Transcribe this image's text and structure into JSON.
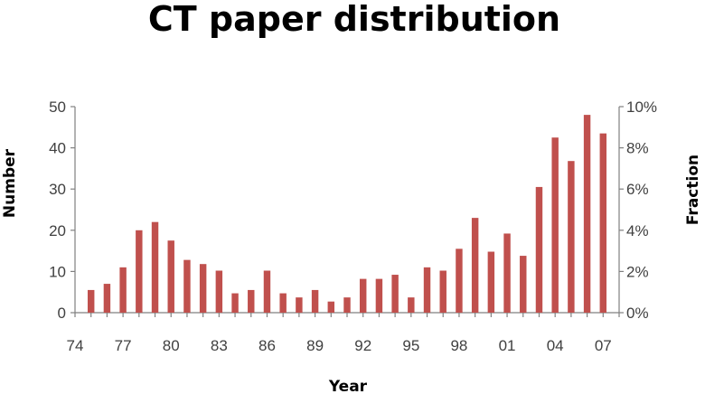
{
  "chart_data": {
    "type": "bar",
    "title": "CT paper distribution",
    "xlabel": "Year",
    "ylabel": "Number",
    "y2label": "Fraction",
    "ylim": [
      0,
      50
    ],
    "y2lim": [
      0,
      0.1
    ],
    "yticks": [
      "0",
      "10",
      "20",
      "30",
      "40",
      "50"
    ],
    "y2ticks": [
      "0%",
      "2%",
      "4%",
      "6%",
      "8%",
      "10%"
    ],
    "xticks": [
      "74",
      "77",
      "80",
      "83",
      "86",
      "89",
      "92",
      "95",
      "98",
      "01",
      "04",
      "07"
    ],
    "categories": [
      "75",
      "76",
      "77",
      "78",
      "79",
      "80",
      "81",
      "82",
      "83",
      "84",
      "85",
      "86",
      "87",
      "88",
      "89",
      "90",
      "91",
      "92",
      "93",
      "94",
      "95",
      "96",
      "97",
      "98",
      "99",
      "00",
      "01",
      "02",
      "03",
      "04",
      "05",
      "06",
      "07"
    ],
    "values": [
      5.5,
      7,
      11,
      20,
      22,
      17.5,
      12.8,
      11.8,
      10.2,
      4.7,
      5.5,
      10.2,
      4.7,
      3.7,
      5.5,
      2.7,
      3.7,
      8.2,
      8.2,
      9.2,
      3.7,
      11,
      10.2,
      15.5,
      23,
      14.8,
      19.2,
      13.8,
      30.5,
      42.5,
      36.8,
      48,
      43.5
    ],
    "grid": false,
    "legend": "none",
    "bar_color": "#c0504d"
  }
}
